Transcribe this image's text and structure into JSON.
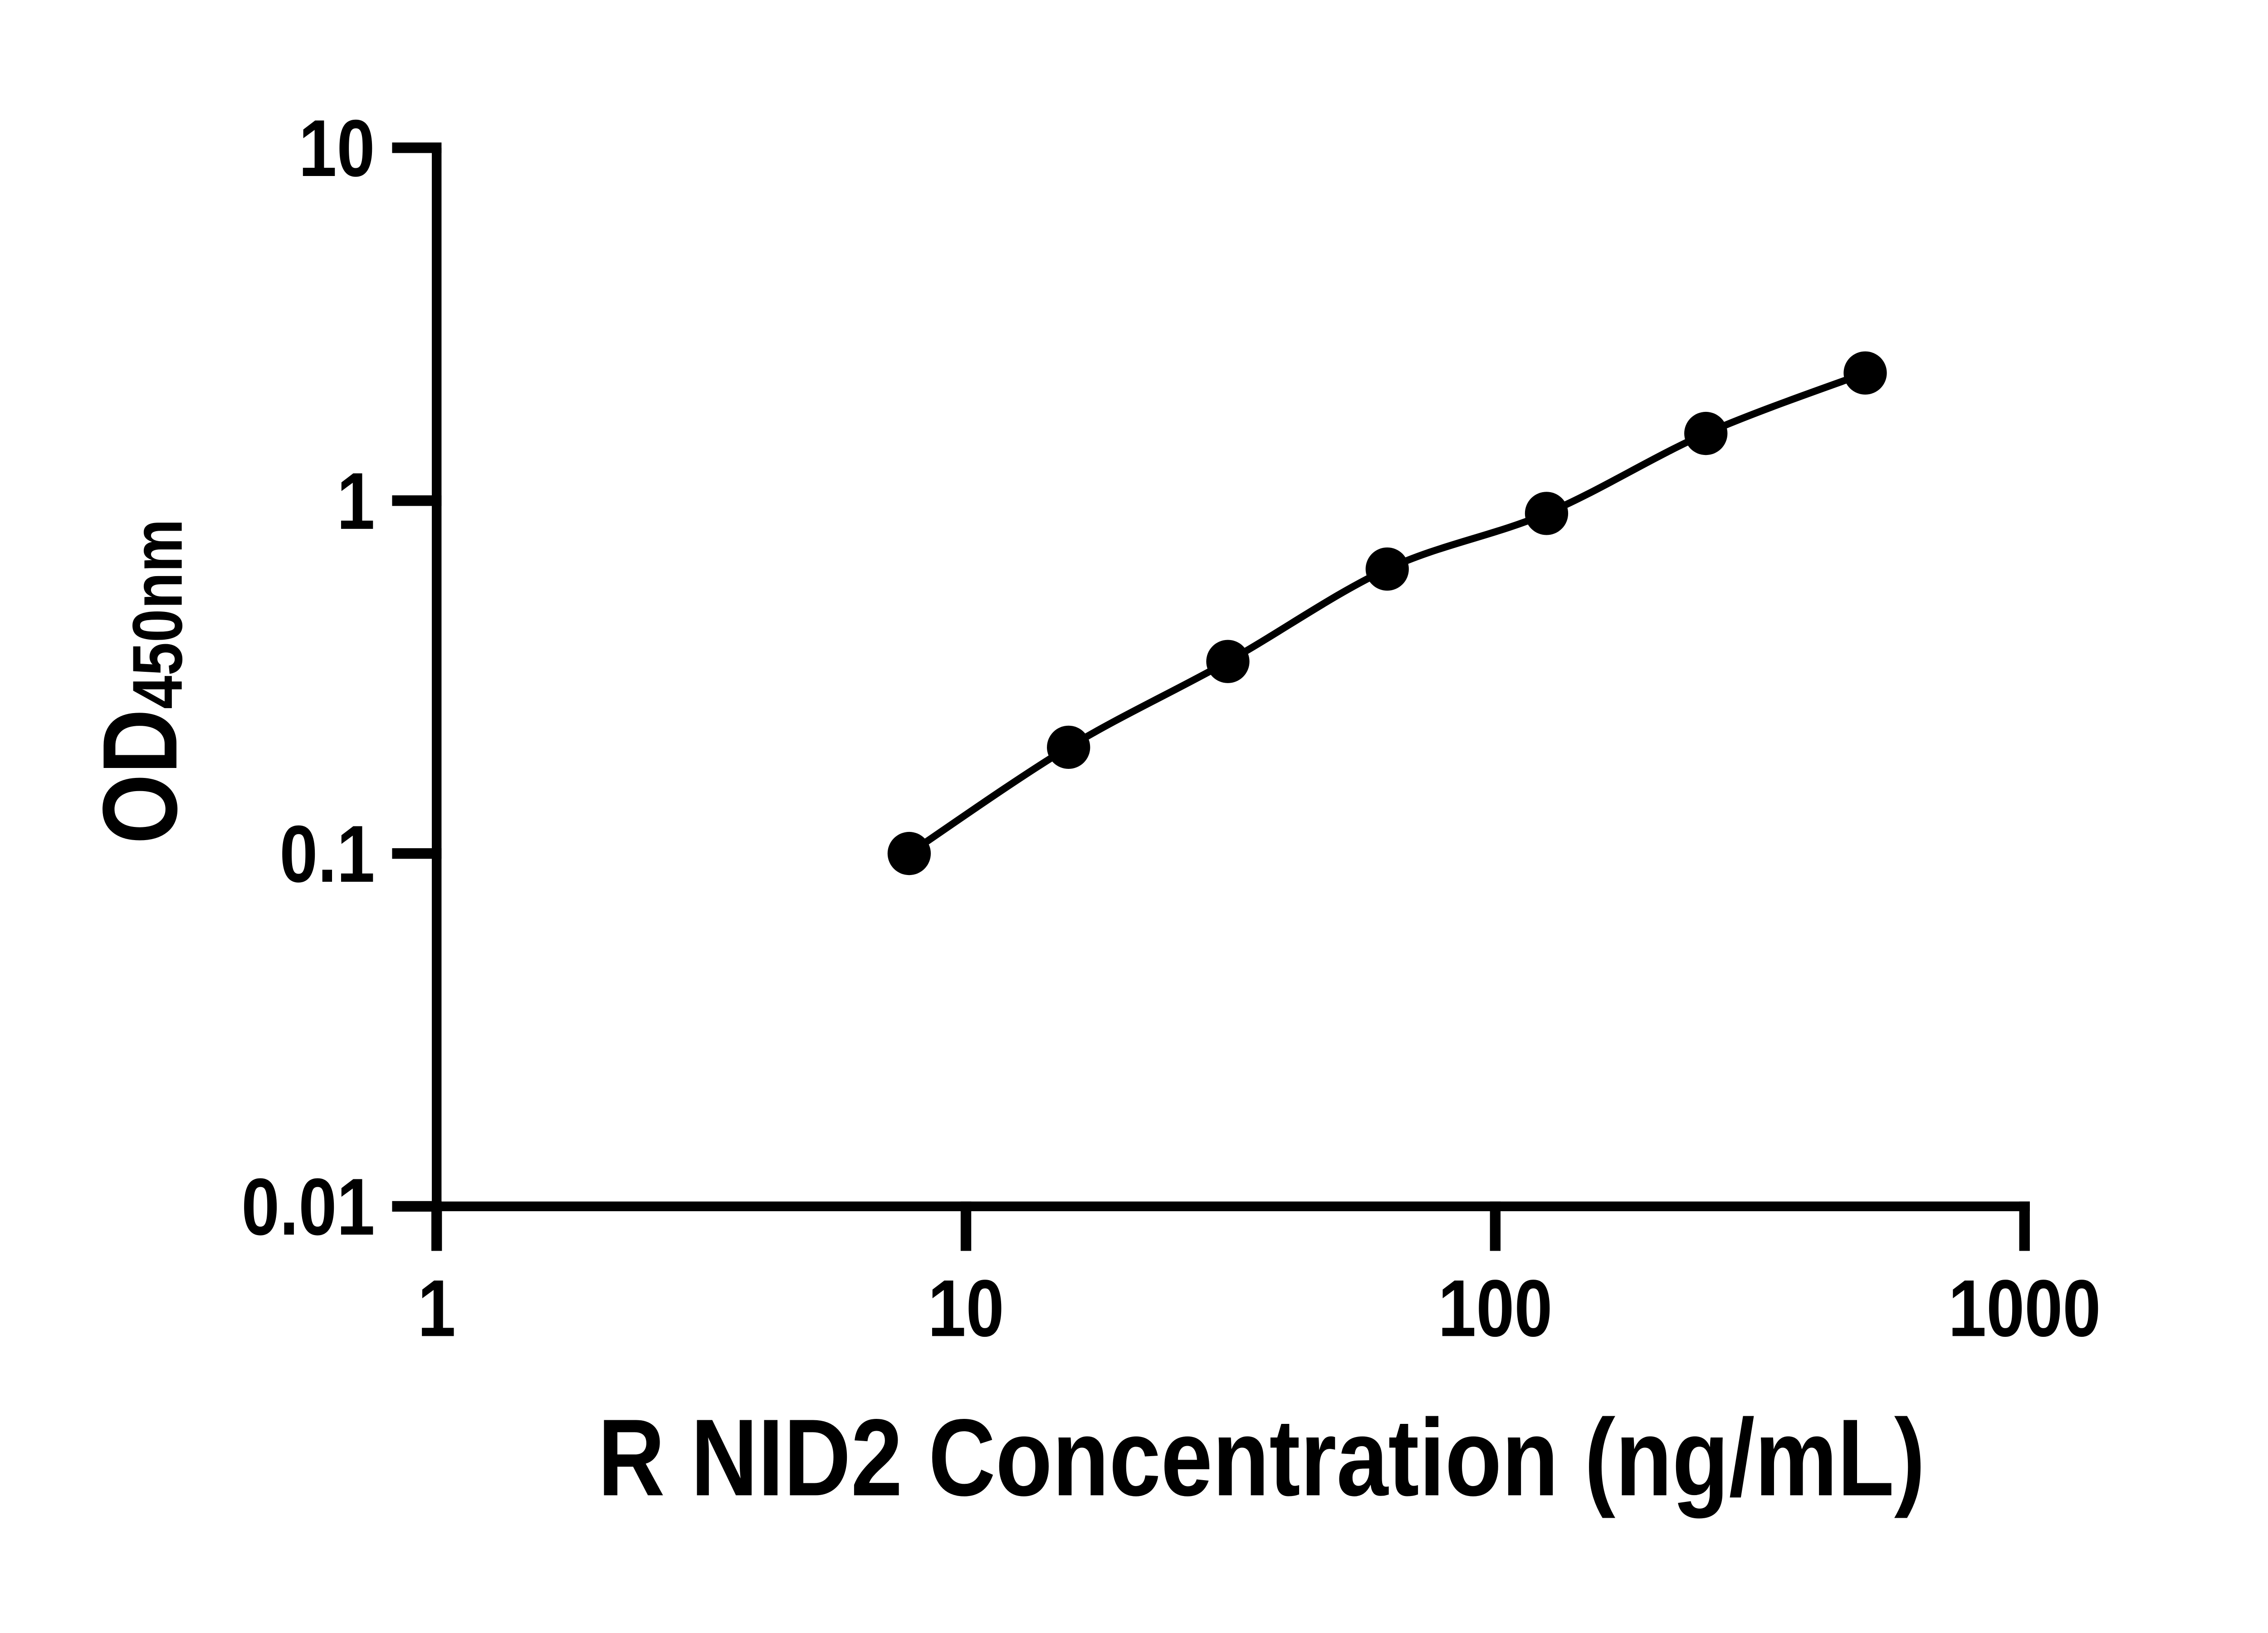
{
  "figure": {
    "background": "#ffffff",
    "ink_color": "#000000"
  },
  "chart_data": {
    "type": "scatter",
    "xlabel": "R NID2 Concentration (ng/mL)",
    "ylabel_main": "OD",
    "ylabel_sub": "450nm",
    "x_scale": "log10",
    "y_scale": "log10",
    "xlim": [
      1,
      1000
    ],
    "ylim": [
      0.01,
      10
    ],
    "grid": false,
    "legend_position": "none",
    "x_ticks": [
      {
        "value": 1,
        "label": "1"
      },
      {
        "value": 10,
        "label": "10"
      },
      {
        "value": 100,
        "label": "100"
      },
      {
        "value": 1000,
        "label": "1000"
      }
    ],
    "y_ticks": [
      {
        "value": 10,
        "label": "10"
      },
      {
        "value": 1,
        "label": "1"
      },
      {
        "value": 0.1,
        "label": "0.1"
      },
      {
        "value": 0.01,
        "label": "0.01"
      }
    ],
    "series": [
      {
        "marker": "filled-circle",
        "line": "smooth",
        "color": "#000000",
        "points": [
          {
            "x": 7.8125,
            "y": 0.1
          },
          {
            "x": 15.625,
            "y": 0.2
          },
          {
            "x": 31.25,
            "y": 0.35
          },
          {
            "x": 62.5,
            "y": 0.64
          },
          {
            "x": 125,
            "y": 0.92
          },
          {
            "x": 250,
            "y": 1.55
          },
          {
            "x": 500,
            "y": 2.3
          }
        ]
      }
    ]
  }
}
